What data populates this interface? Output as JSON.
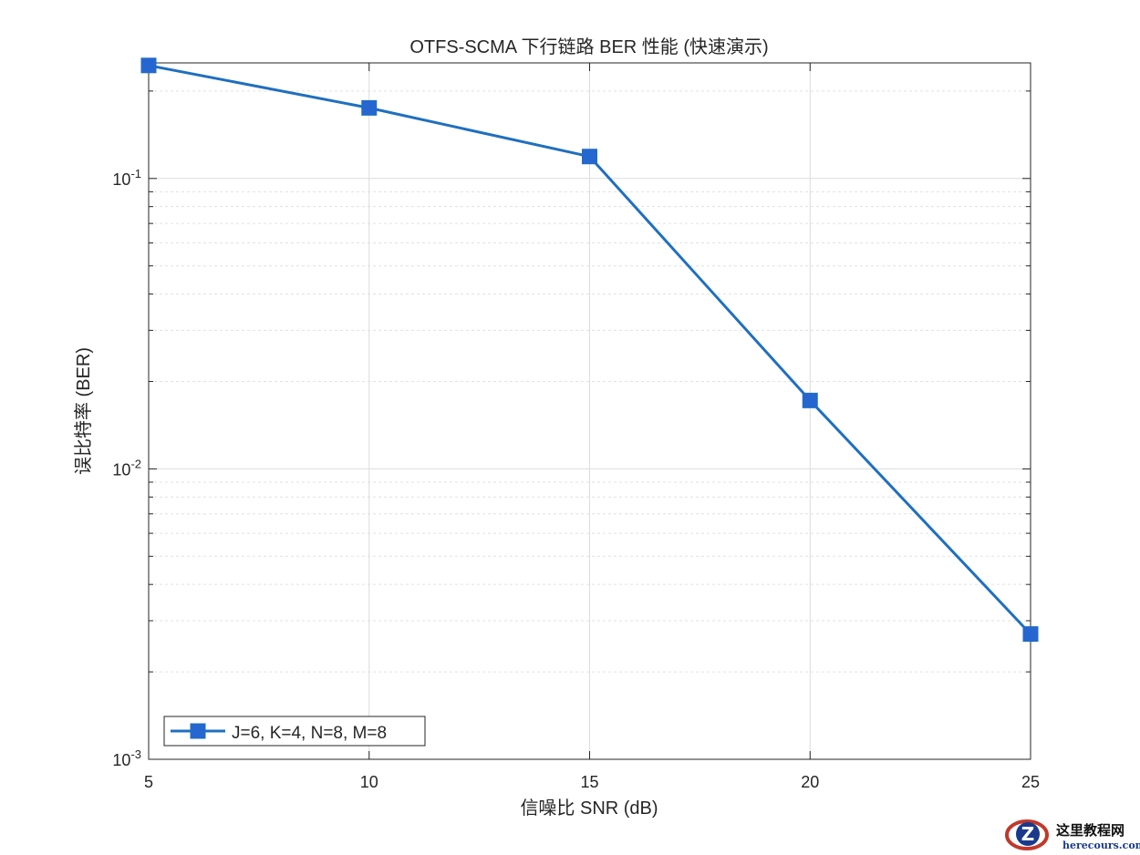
{
  "chart_data": {
    "type": "line",
    "title": "OTFS-SCMA 下行链路 BER 性能 (快速演示)",
    "xlabel": "信噪比 SNR (dB)",
    "ylabel": "误比特率 (BER)",
    "x_scale": "linear",
    "y_scale": "log",
    "xlim": [
      5,
      25
    ],
    "ylim": [
      0.001,
      0.25
    ],
    "x_ticks": [
      "5",
      "10",
      "15",
      "20",
      "25"
    ],
    "y_ticks": [
      {
        "base": "10",
        "exp": "-1",
        "value": 0.1
      },
      {
        "base": "10",
        "exp": "-2",
        "value": 0.01
      },
      {
        "base": "10",
        "exp": "-3",
        "value": 0.001
      }
    ],
    "grid": true,
    "minor_grid": true,
    "legend_position": "bottom-left",
    "series": [
      {
        "name": "J=6, K=4, N=8, M=8",
        "color": "#1f6fc0",
        "marker": "square",
        "marker_color": "#2666d0",
        "x": [
          5,
          10,
          15,
          20,
          25
        ],
        "y": [
          0.245,
          0.175,
          0.119,
          0.0172,
          0.0027
        ]
      }
    ]
  },
  "watermark": {
    "logo_letter": "Z",
    "text_cn": "这里教程网",
    "text_en": "herecours.com"
  }
}
